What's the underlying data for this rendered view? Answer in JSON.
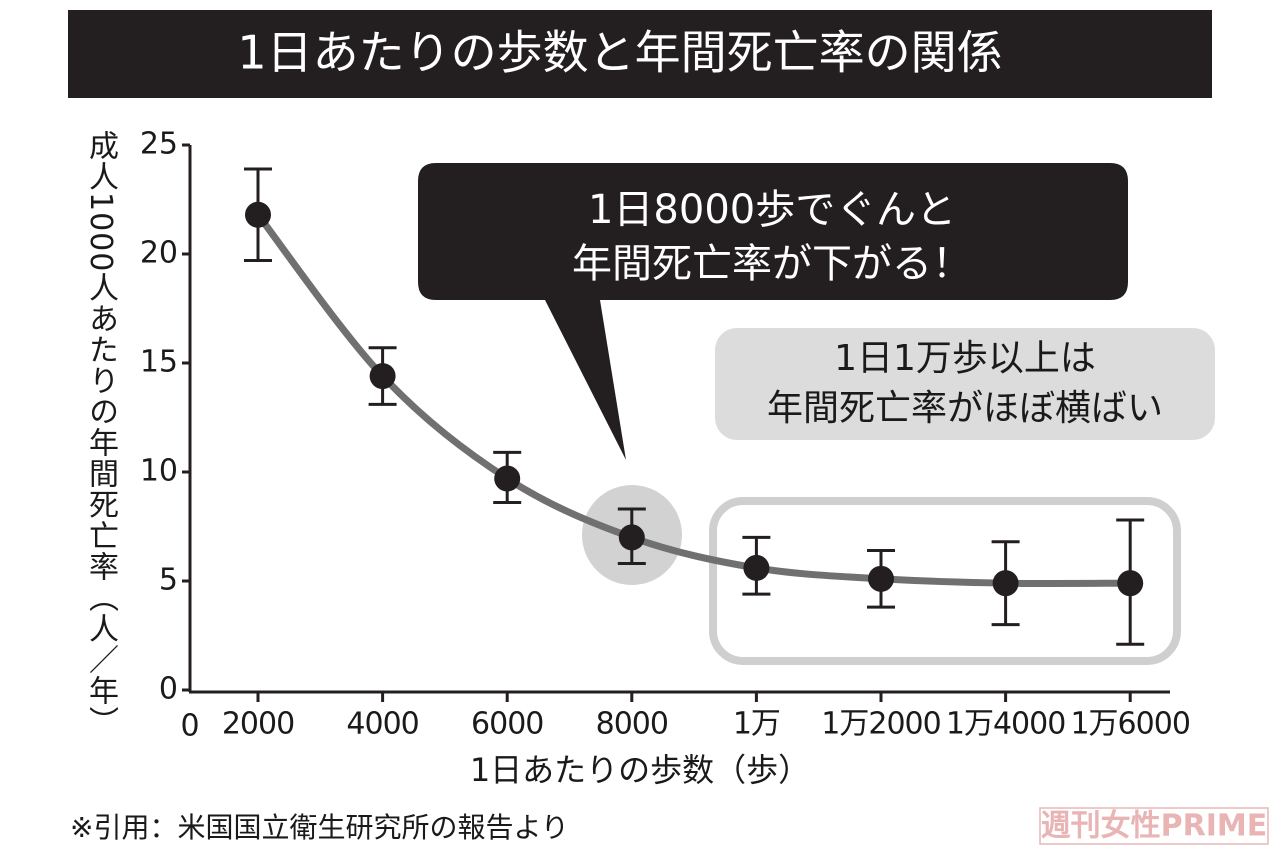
{
  "chart_data": {
    "type": "line_errorbar",
    "title": "1日あたりの歩数と年間死亡率の関係",
    "categories": [
      "2000",
      "4000",
      "6000",
      "8000",
      "1万",
      "1万2000",
      "1万4000",
      "1万6000"
    ],
    "x_origin_label": "0",
    "series": [
      {
        "name": "年間死亡率",
        "color": "#707070",
        "values": [
          21.8,
          14.4,
          9.7,
          7.0,
          5.6,
          5.1,
          4.9,
          4.9
        ],
        "lower": [
          19.7,
          13.1,
          8.6,
          5.8,
          4.4,
          3.8,
          3.0,
          2.1
        ],
        "upper": [
          23.9,
          15.7,
          10.9,
          8.3,
          7.0,
          6.4,
          6.8,
          7.8
        ]
      }
    ],
    "ylim": [
      0,
      25
    ],
    "yticks": [
      0,
      5,
      10,
      15,
      20,
      25
    ],
    "y_label": "成人1000人あたりの年間死亡率（人／年）",
    "x_label": "1日あたりの歩数（歩）",
    "annotations": [
      [
        "1日8000歩でぐんと",
        "年間死亡率が下がる！"
      ],
      [
        "1日1万歩以上は",
        "年間死亡率がほぼ横ばい"
      ]
    ],
    "source": "※引用：米国国立衛生研究所の報告より",
    "watermark": "週刊女性PRIME"
  }
}
